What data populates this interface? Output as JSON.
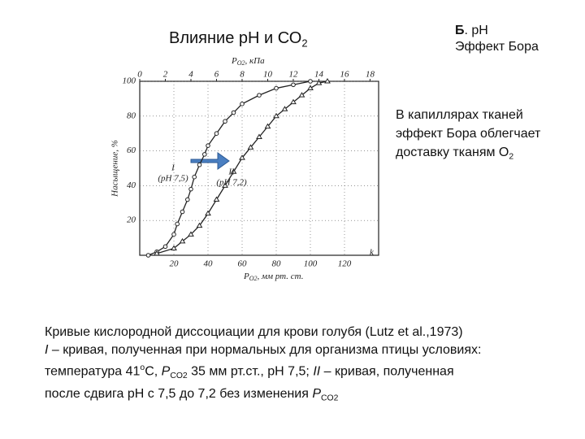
{
  "slide_title": {
    "text": "Влияние рН и СО",
    "sub": "2"
  },
  "side_header": {
    "line1_bold": "Б",
    "line1_rest": ". рН",
    "line2": "Эффект Бора"
  },
  "bullet": {
    "lines": [
      "В капиллярах тканей",
      "эффект Бора облегчает",
      "доставку тканям О"
    ],
    "sub": "2"
  },
  "caption": {
    "lines": [
      [
        "Кривые кислородной диссоциации для крови голубя (Lutz et al.,1973)"
      ],
      [
        "I",
        " – кривая, полученная при нормальных для организма птицы условиях:"
      ],
      [
        "температура 41",
        "о",
        "С,  ",
        "P",
        "CO2",
        "  35 мм рт.ст., рН 7,5;  ",
        "II",
        " – кривая, полученная"
      ],
      [
        "после сдвига рН с 7,5 до 7,2 без изменения ",
        "P",
        "CO2"
      ]
    ]
  },
  "chart_data": {
    "type": "line",
    "y_label": "Насыщение, %",
    "x_label": {
      "main": "P",
      "sub": "O2",
      "unit": ", мм рт. ст."
    },
    "x2_label": {
      "main": "P",
      "sub": "O2",
      "unit": ", кПа"
    },
    "annotations": [
      "k"
    ],
    "xlim": [
      0,
      140
    ],
    "xticks": [
      20,
      40,
      60,
      80,
      100,
      120
    ],
    "x2lim": [
      0,
      18.67
    ],
    "x2ticks": [
      0,
      2,
      4,
      6,
      8,
      10,
      12,
      14,
      16,
      18
    ],
    "ylim": [
      0,
      100
    ],
    "yticks": [
      20,
      40,
      60,
      80,
      100
    ],
    "grid": true,
    "series": [
      {
        "name": "I",
        "label2": "(pH 7,5)",
        "color": "#222222",
        "marker": "circle",
        "x": [
          5,
          10,
          15,
          20,
          22,
          25,
          28,
          30,
          32,
          35,
          38,
          40,
          45,
          50,
          55,
          60,
          70,
          80,
          90,
          100
        ],
        "values": [
          0,
          2,
          5,
          12,
          18,
          25,
          32,
          38,
          45,
          52,
          58,
          63,
          70,
          77,
          82,
          87,
          92,
          96,
          98,
          100
        ]
      },
      {
        "name": "II",
        "label2": "(pH 7,2)",
        "color": "#222222",
        "marker": "triangle",
        "x": [
          10,
          20,
          25,
          30,
          35,
          40,
          45,
          50,
          55,
          60,
          65,
          70,
          75,
          80,
          85,
          90,
          95,
          100,
          105,
          110
        ],
        "values": [
          1,
          4,
          8,
          12,
          17,
          24,
          32,
          40,
          48,
          56,
          62,
          68,
          74,
          80,
          84,
          88,
          92,
          96,
          99,
          100
        ]
      }
    ]
  }
}
